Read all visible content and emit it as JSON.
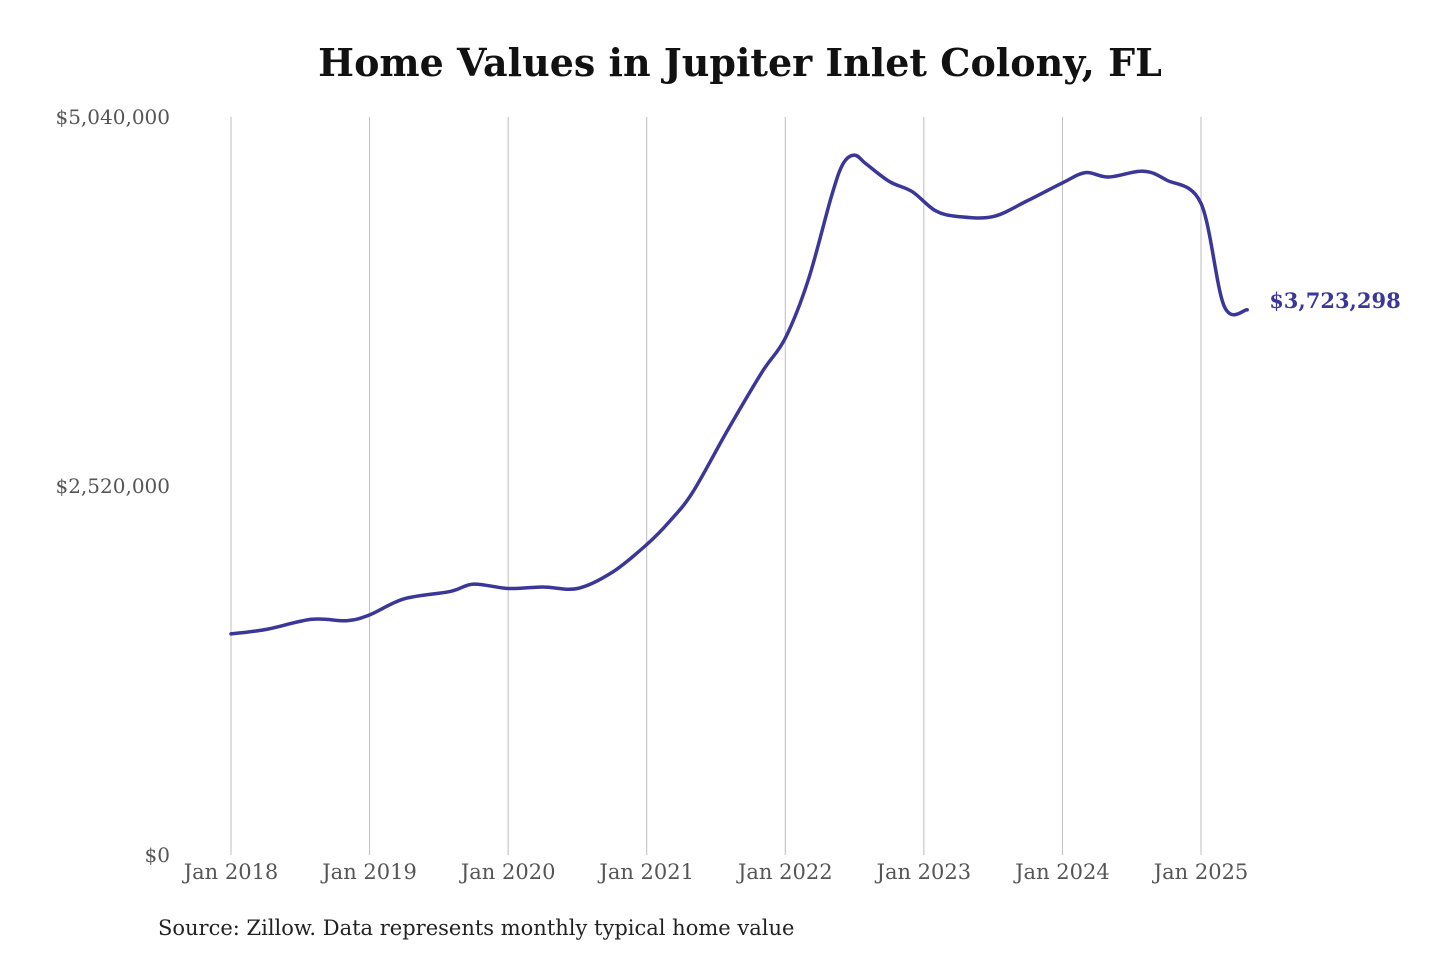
{
  "chart_data": {
    "type": "line",
    "title": "Home Values in Jupiter Inlet Colony, FL",
    "source": "Source: Zillow. Data represents monthly typical home value",
    "xlabel": "",
    "ylabel": "",
    "ylim": [
      0,
      5040000
    ],
    "yticks": [
      {
        "value": 5040000,
        "label": "$5,040,000"
      },
      {
        "value": 2520000,
        "label": "$2,520,000"
      },
      {
        "value": 0,
        "label": "$0"
      }
    ],
    "xticks": [
      {
        "value": "2018-01",
        "label": "Jan 2018"
      },
      {
        "value": "2019-01",
        "label": "Jan 2019"
      },
      {
        "value": "2020-01",
        "label": "Jan 2020"
      },
      {
        "value": "2021-01",
        "label": "Jan 2021"
      },
      {
        "value": "2022-01",
        "label": "Jan 2022"
      },
      {
        "value": "2023-01",
        "label": "Jan 2023"
      },
      {
        "value": "2024-01",
        "label": "Jan 2024"
      },
      {
        "value": "2025-01",
        "label": "Jan 2025"
      }
    ],
    "grid": "vertical",
    "line_color": "#3b3799",
    "end_label": "$3,723,298",
    "series": [
      {
        "x": [
          "2018-01",
          "2018-04",
          "2018-08",
          "2018-11",
          "2019-01",
          "2019-04",
          "2019-08",
          "2019-10",
          "2020-01",
          "2020-04",
          "2020-07",
          "2020-10",
          "2021-01",
          "2021-03",
          "2021-05",
          "2021-08",
          "2021-11",
          "2022-01",
          "2022-03",
          "2022-05",
          "2022-06",
          "2022-07",
          "2022-08",
          "2022-10",
          "2022-12",
          "2023-02",
          "2023-04",
          "2023-07",
          "2023-10",
          "2024-01",
          "2024-03",
          "2024-05",
          "2024-08",
          "2024-10",
          "2025-01",
          "2025-03",
          "2025-05"
        ],
        "values": [
          1510000,
          1540000,
          1610000,
          1600000,
          1640000,
          1750000,
          1800000,
          1850000,
          1820000,
          1830000,
          1820000,
          1930000,
          2120000,
          2280000,
          2480000,
          2900000,
          3300000,
          3530000,
          3930000,
          4500000,
          4720000,
          4780000,
          4720000,
          4600000,
          4530000,
          4400000,
          4360000,
          4360000,
          4470000,
          4590000,
          4660000,
          4630000,
          4670000,
          4610000,
          4450000,
          3750000,
          3723298
        ]
      }
    ]
  }
}
